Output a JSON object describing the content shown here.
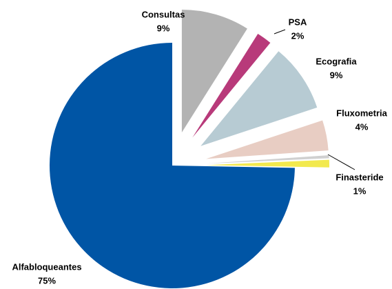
{
  "chart_data": {
    "type": "pie",
    "categories": [
      "Consultas",
      "PSA",
      "Ecografia",
      "Fluxometria",
      null,
      "Finasteride",
      "Alfabloqueantes"
    ],
    "values": [
      9,
      2,
      9,
      4,
      0.4,
      1,
      75
    ],
    "value_labels": [
      "9%",
      "2%",
      "9%",
      "4%",
      null,
      "1%",
      "75%"
    ],
    "colors": [
      "#b3b3b3",
      "#b83a7a",
      "#b7cbd3",
      "#e8cdc3",
      "#d0d0d0",
      "#f2e94e",
      "#0055a5"
    ],
    "exploded": [
      true,
      true,
      true,
      true,
      true,
      true,
      false
    ]
  }
}
